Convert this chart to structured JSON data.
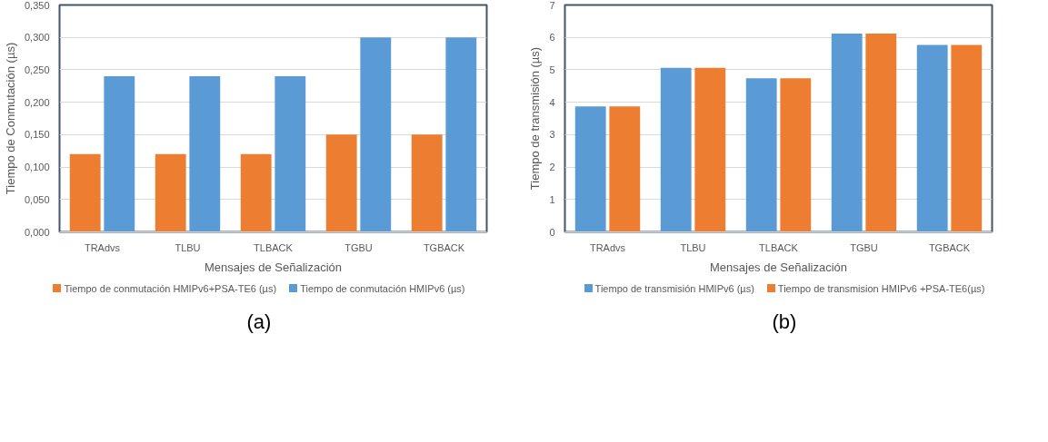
{
  "chart_data": [
    {
      "type": "bar",
      "xlabel": "Mensajes de Señalización",
      "ylabel": "Tiempo de Conmutación (µs)",
      "categories": [
        "TRAdvs",
        "TLBU",
        "TLBACK",
        "TGBU",
        "TGBACK"
      ],
      "series": [
        {
          "name": "Tiempo de conmutación HMIPv6+PSA-TE6 (µs)",
          "color": "#ed7d31",
          "values": [
            0.12,
            0.12,
            0.12,
            0.15,
            0.15
          ]
        },
        {
          "name": "Tiempo de conmutación HMIPv6 (µs)",
          "color": "#5b9bd5",
          "values": [
            0.24,
            0.24,
            0.24,
            0.3,
            0.3
          ]
        }
      ],
      "ylim": [
        0,
        0.35
      ],
      "yticks": [
        {
          "value": 0,
          "label": "0,000"
        },
        {
          "value": 0.05,
          "label": "0,050"
        },
        {
          "value": 0.1,
          "label": "0,100"
        },
        {
          "value": 0.15,
          "label": "0,150"
        },
        {
          "value": 0.2,
          "label": "0,200"
        },
        {
          "value": 0.25,
          "label": "0,250"
        },
        {
          "value": 0.3,
          "label": "0,300"
        },
        {
          "value": 0.35,
          "label": "0,350"
        }
      ],
      "grid": "y",
      "legend": "bottom",
      "annotations": [
        "(a)"
      ]
    },
    {
      "type": "bar",
      "xlabel": "Mensajes de Señalización",
      "ylabel": "Tiempo de transmisión (µs)",
      "categories": [
        "TRAdvs",
        "TLBU",
        "TLBACK",
        "TGBU",
        "TGBACK"
      ],
      "series": [
        {
          "name": "Tiempo de transmisión HMIPv6 (µs)",
          "color": "#5b9bd5",
          "values": [
            3.87,
            5.06,
            4.74,
            6.12,
            5.77
          ]
        },
        {
          "name": "Tiempo de transmision HMIPv6 +PSA-TE6(µs)",
          "color": "#ed7d31",
          "values": [
            3.87,
            5.06,
            4.74,
            6.12,
            5.77
          ]
        }
      ],
      "ylim": [
        0,
        7
      ],
      "yticks": [
        0,
        1,
        2,
        3,
        4,
        5,
        6,
        7
      ],
      "grid": "y",
      "legend": "bottom",
      "annotations": [
        "(b)"
      ]
    }
  ]
}
